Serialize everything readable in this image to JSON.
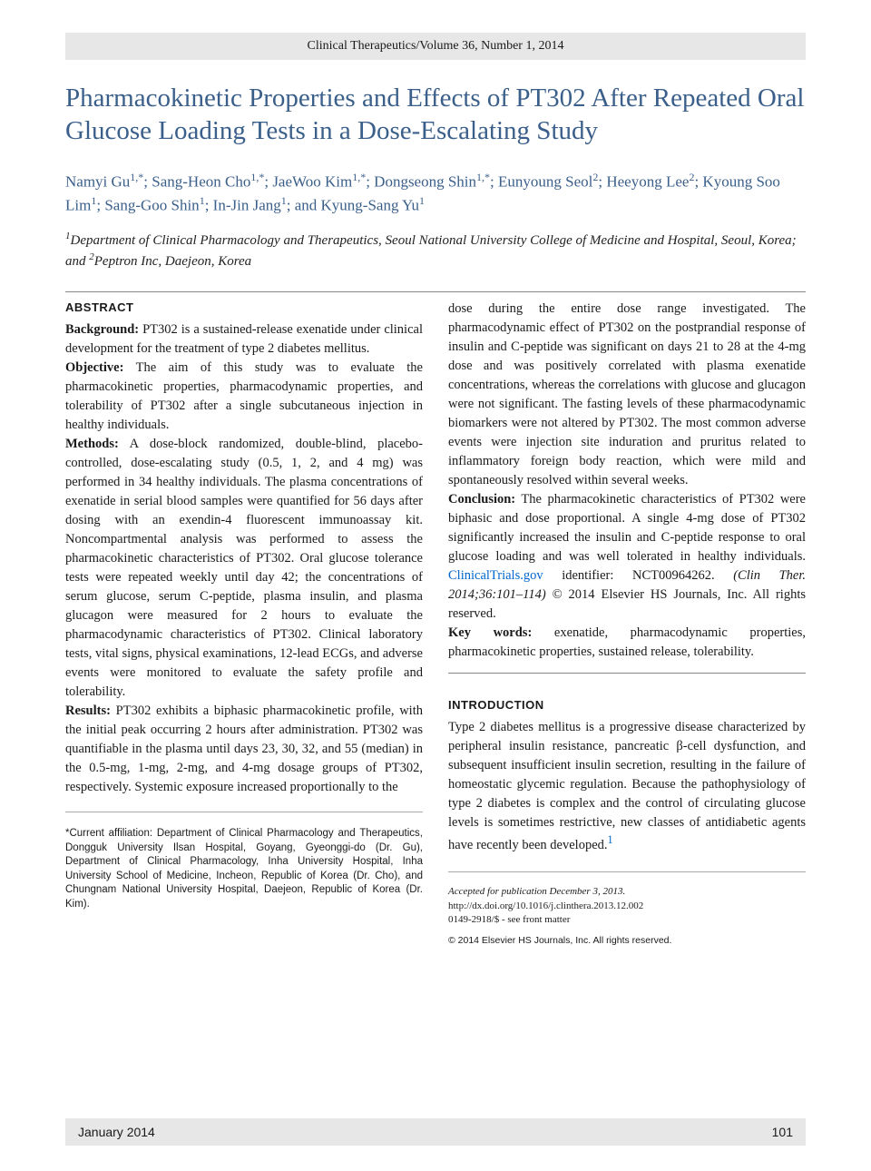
{
  "journal_header": "Clinical Therapeutics/Volume 36, Number 1, 2014",
  "title": "Pharmacokinetic Properties and Effects of PT302 After Repeated Oral Glucose Loading Tests in a Dose-Escalating Study",
  "authors_html": "Namyi Gu<sup>1,*</sup>; Sang-Heon Cho<sup>1,*</sup>; JaeWoo Kim<sup>1,*</sup>; Dongseong Shin<sup>1,*</sup>; Eunyoung Seol<sup>2</sup>; Heeyong Lee<sup>2</sup>; Kyoung Soo Lim<sup>1</sup>; Sang-Goo Shin<sup>1</sup>; In-Jin Jang<sup>1</sup>; and Kyung-Sang Yu<sup>1</sup>",
  "affiliations_html": "<sup>1</sup>Department of Clinical Pharmacology and Therapeutics, Seoul National University College of Medicine and Hospital, Seoul, Korea; and <sup>2</sup>Peptron Inc, Daejeon, Korea",
  "abstract_head": "ABSTRACT",
  "abstract": {
    "background_label": "Background:",
    "background": " PT302 is a sustained-release exenatide under clinical development for the treatment of type 2 diabetes mellitus.",
    "objective_label": "Objective:",
    "objective": " The aim of this study was to evaluate the pharmacokinetic properties, pharmacodynamic properties, and tolerability of PT302 after a single subcutaneous injection in healthy individuals.",
    "methods_label": "Methods:",
    "methods": " A dose-block randomized, double-blind, placebo-controlled, dose-escalating study (0.5, 1, 2, and 4 mg) was performed in 34 healthy individuals. The plasma concentrations of exenatide in serial blood samples were quantified for 56 days after dosing with an exendin-4 fluorescent immunoassay kit. Noncompartmental analysis was performed to assess the pharmacokinetic characteristics of PT302. Oral glucose tolerance tests were repeated weekly until day 42; the concentrations of serum glucose, serum C-peptide, plasma insulin, and plasma glucagon were measured for 2 hours to evaluate the pharmacodynamic characteristics of PT302. Clinical laboratory tests, vital signs, physical examinations, 12-lead ECGs, and adverse events were monitored to evaluate the safety profile and tolerability.",
    "results_label": "Results:",
    "results_part1": " PT302 exhibits a biphasic pharmacokinetic profile, with the initial peak occurring 2 hours after administration. PT302 was quantifiable in the plasma until days 23, 30, 32, and 55 (median) in the 0.5-mg, 1-mg, 2-mg, and 4-mg dosage groups of PT302, respectively. Systemic exposure increased proportionally to the ",
    "results_part2": "dose during the entire dose range investigated. The pharmacodynamic effect of PT302 on the postprandial response of insulin and C-peptide was significant on days 21 to 28 at the 4-mg dose and was positively correlated with plasma exenatide concentrations, whereas the correlations with glucose and glucagon were not significant. The fasting levels of these pharmacodynamic biomarkers were not altered by PT302. The most common adverse events were injection site induration and pruritus related to inflammatory foreign body reaction, which were mild and spontaneously resolved within several weeks.",
    "conclusion_label": "Conclusion:",
    "conclusion": " The pharmacokinetic characteristics of PT302 were biphasic and dose proportional. A single 4-mg dose of PT302 significantly increased the insulin and C-peptide response to oral glucose loading and was well tolerated in healthy individuals. ",
    "reg_link": "ClinicalTrials.gov",
    "reg_suffix": " identifier: NCT00964262. ",
    "citation": "(Clin Ther. 2014;36:101–114)",
    "copyright": " © 2014 Elsevier HS Journals, Inc. All rights reserved.",
    "keywords_label": "Key words:",
    "keywords": " exenatide, pharmacodynamic properties, pharmacokinetic properties, sustained release, tolerability."
  },
  "intro_head": "INTRODUCTION",
  "intro_para": "Type 2 diabetes mellitus is a progressive disease characterized by peripheral insulin resistance, pancreatic β-cell dysfunction, and subsequent insufficient insulin secretion, resulting in the failure of homeostatic glycemic regulation. Because the pathophysiology of type 2 diabetes is complex and the control of circulating glucose levels is sometimes restrictive, new classes of antidiabetic agents have recently been developed.",
  "intro_ref": "1",
  "footnote": "*Current affiliation: Department of Clinical Pharmacology and Therapeutics, Dongguk University Ilsan Hospital, Goyang, Gyeonggi-do (Dr. Gu), Department of Clinical Pharmacology, Inha University Hospital, Inha University School of Medicine, Incheon, Republic of Korea (Dr. Cho), and Chungnam National University Hospital, Daejeon, Republic of Korea (Dr. Kim).",
  "accepted": {
    "line1": "Accepted for publication December 3, 2013.",
    "doi": "http://dx.doi.org/10.1016/j.clinthera.2013.12.002",
    "issn": "0149-2918/$ - see front matter"
  },
  "bottom_copyright": "© 2014 Elsevier HS Journals, Inc. All rights reserved.",
  "footer": {
    "month": "January 2014",
    "page": "101"
  },
  "colors": {
    "header_bg": "#e7e7e7",
    "title_color": "#3a5f8a",
    "link_color": "#0066cc",
    "text_color": "#1a1a1a"
  }
}
